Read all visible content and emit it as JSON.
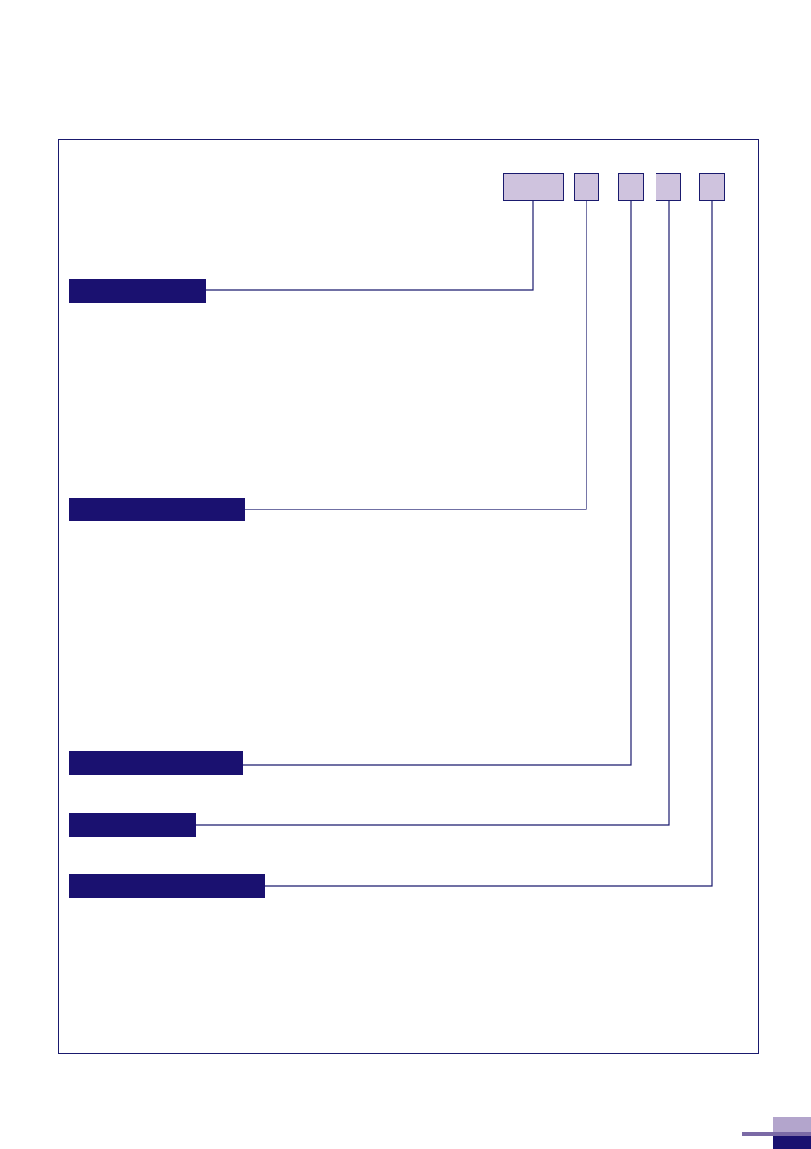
{
  "diagram": {
    "code_boxes": [
      {
        "id": "box-1",
        "text": ""
      },
      {
        "id": "box-2",
        "text": ""
      },
      {
        "id": "box-3",
        "text": ""
      },
      {
        "id": "box-4",
        "text": ""
      },
      {
        "id": "box-5",
        "text": ""
      }
    ],
    "labels": [
      {
        "id": "label-1",
        "text": ""
      },
      {
        "id": "label-2",
        "text": ""
      },
      {
        "id": "label-3",
        "text": ""
      },
      {
        "id": "label-4",
        "text": ""
      },
      {
        "id": "label-5",
        "text": ""
      }
    ]
  },
  "colors": {
    "box_fill": "#cfc3de",
    "label_fill": "#1a1170",
    "line": "#1a1a6e",
    "tab_light": "#b3a5cc",
    "tab_mid": "#7b6aa6"
  }
}
